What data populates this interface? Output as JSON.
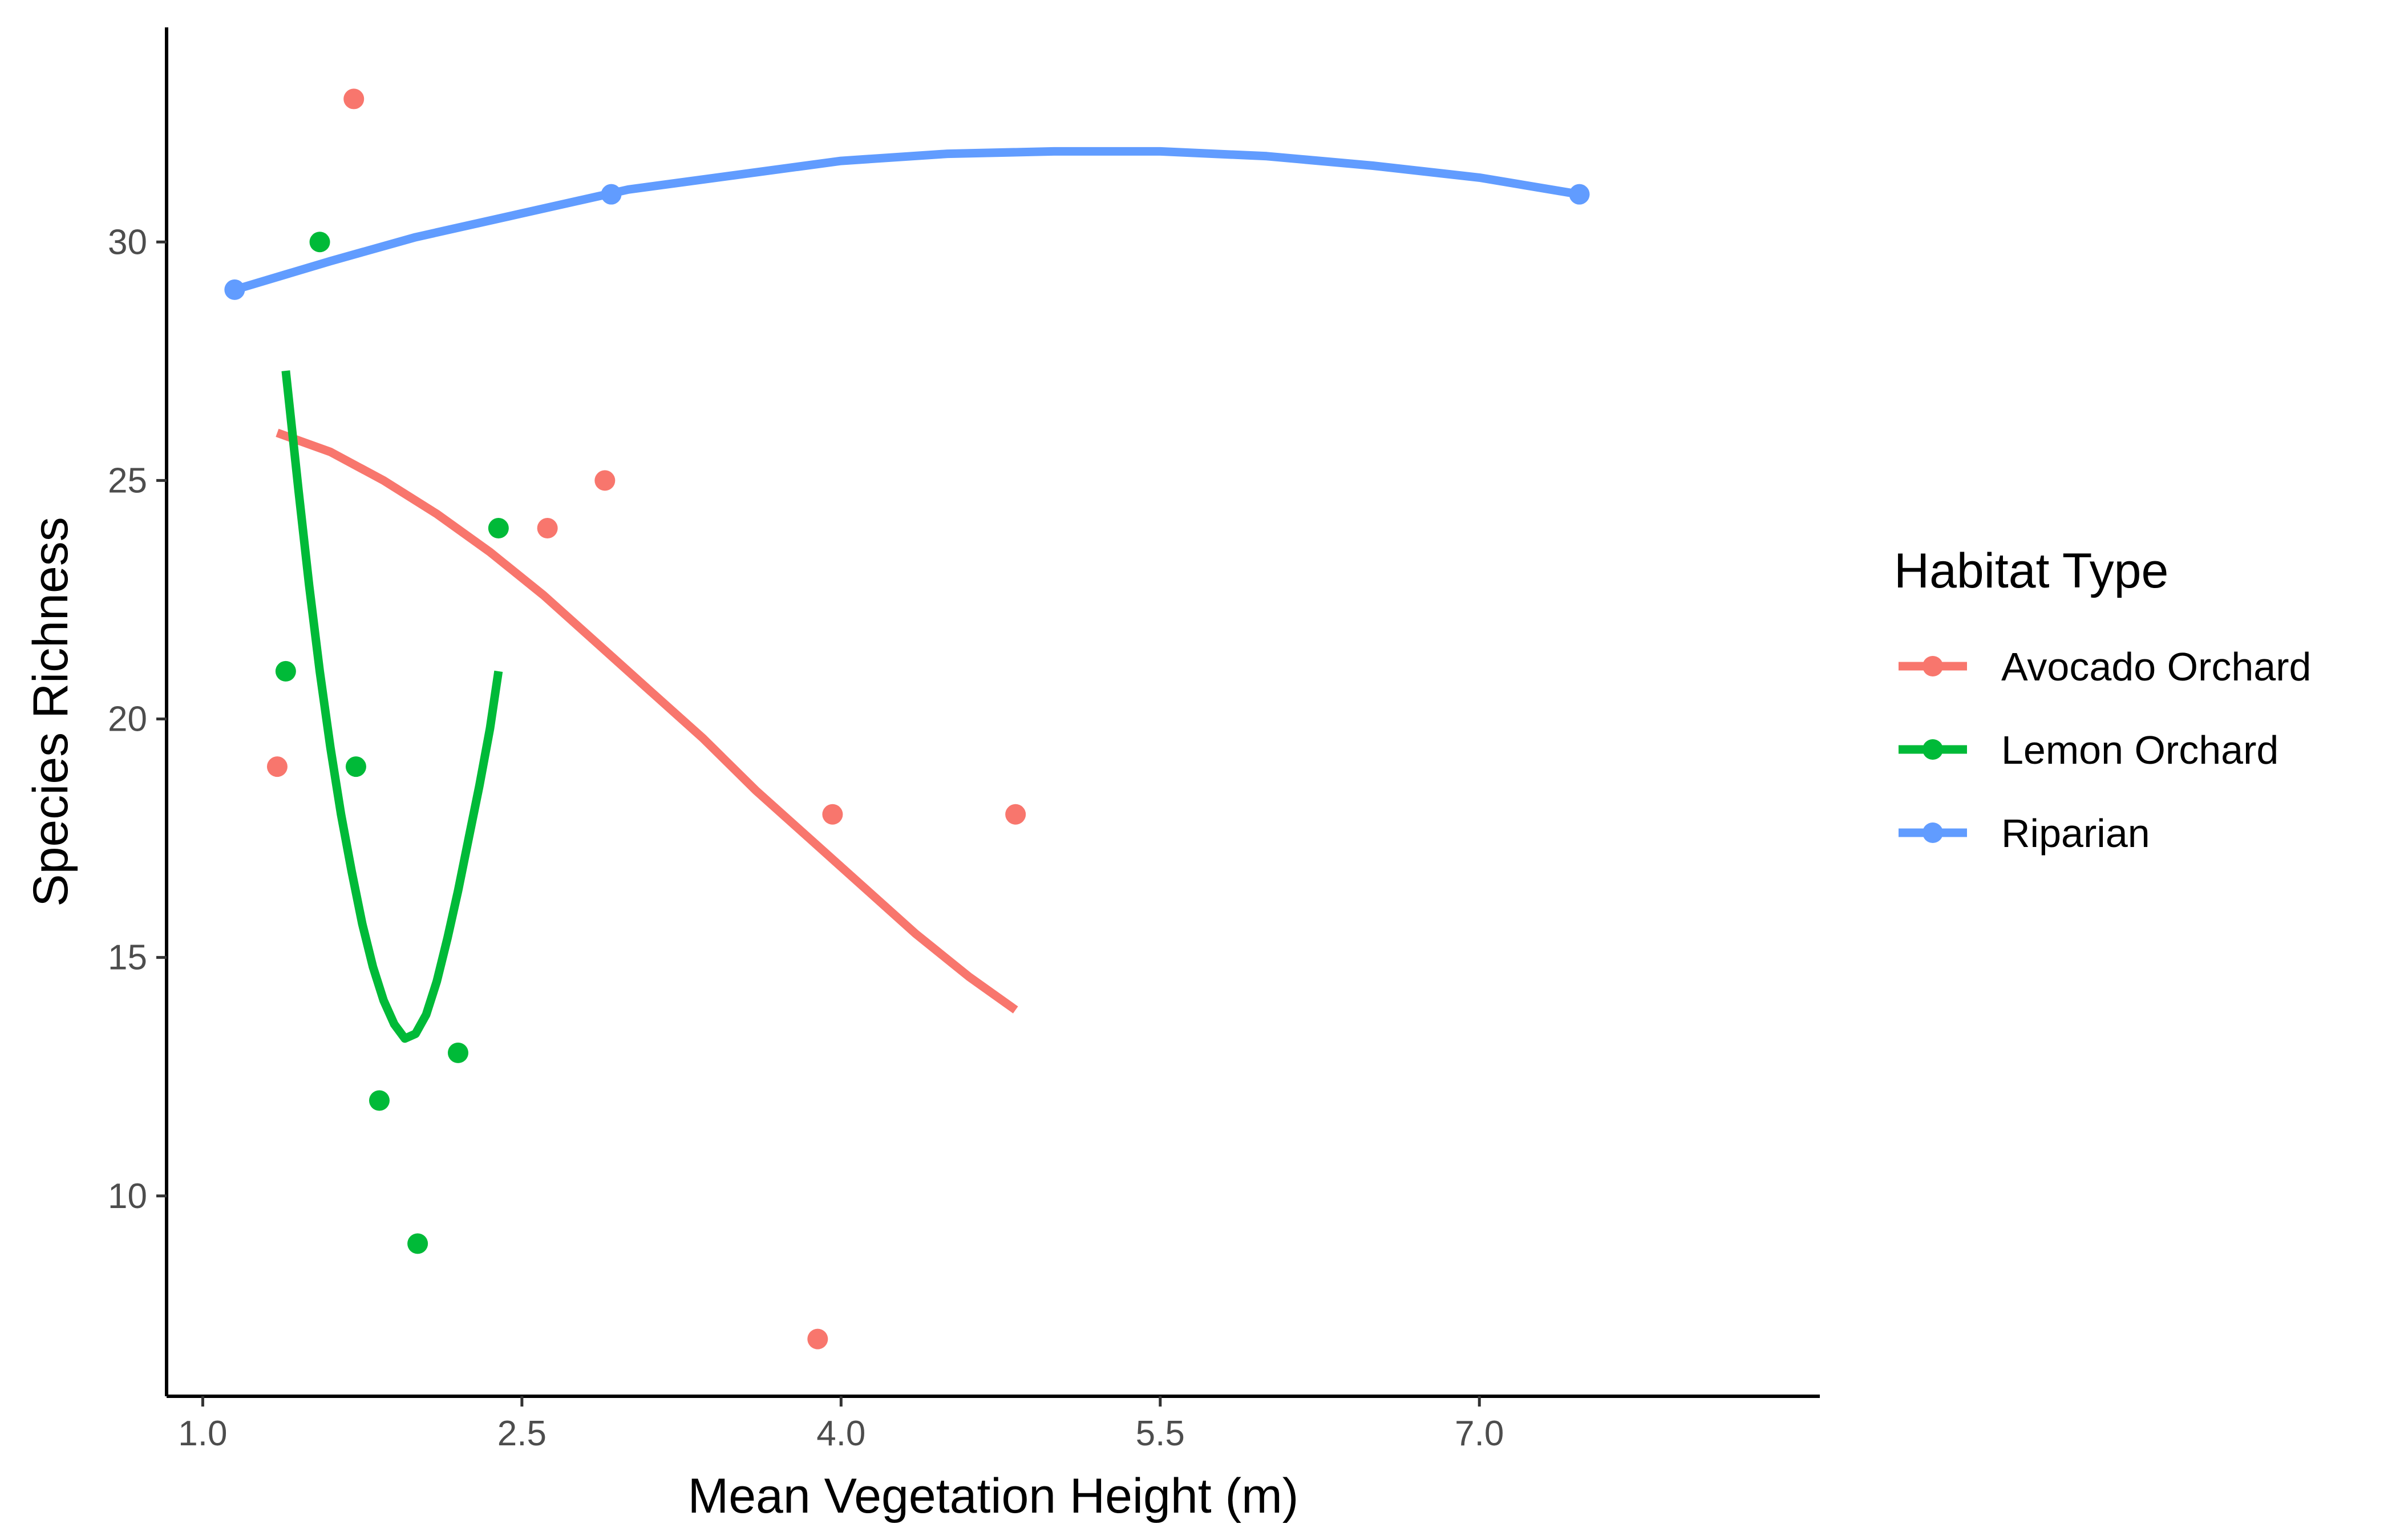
{
  "chart_data": {
    "type": "scatter",
    "title": "",
    "xlabel": "Mean Vegetation Height (m)",
    "ylabel": "Species Richness",
    "xlim": [
      0.83,
      8.6
    ],
    "ylim": [
      5.8,
      34.5
    ],
    "x_ticks": [
      1.0,
      2.5,
      4.0,
      5.5,
      7.0
    ],
    "x_tick_labels": [
      "1.0",
      "2.5",
      "4.0",
      "5.5",
      "7.0"
    ],
    "y_ticks": [
      10,
      15,
      20,
      25,
      30
    ],
    "y_tick_labels": [
      "10",
      "15",
      "20",
      "25",
      "30"
    ],
    "grid": false,
    "legend": {
      "title": "Habitat Type",
      "position": "right"
    },
    "series": [
      {
        "name": "Avocado Orchard",
        "color": "#F8766D",
        "points": [
          {
            "x": 1.35,
            "y": 19
          },
          {
            "x": 1.71,
            "y": 33
          },
          {
            "x": 2.62,
            "y": 24
          },
          {
            "x": 2.89,
            "y": 25
          },
          {
            "x": 3.89,
            "y": 7
          },
          {
            "x": 3.96,
            "y": 18
          },
          {
            "x": 4.82,
            "y": 18
          }
        ],
        "fit": {
          "x": [
            1.35,
            1.6,
            1.85,
            2.1,
            2.35,
            2.6,
            2.85,
            3.1,
            3.35,
            3.6,
            3.85,
            4.1,
            4.35,
            4.6,
            4.82
          ],
          "y": [
            26.0,
            25.6,
            25.0,
            24.3,
            23.5,
            22.6,
            21.6,
            20.6,
            19.6,
            18.5,
            17.5,
            16.5,
            15.5,
            14.6,
            13.9
          ]
        }
      },
      {
        "name": "Lemon Orchard",
        "color": "#00BA38",
        "points": [
          {
            "x": 1.39,
            "y": 21
          },
          {
            "x": 1.55,
            "y": 30
          },
          {
            "x": 1.72,
            "y": 19
          },
          {
            "x": 1.83,
            "y": 12
          },
          {
            "x": 2.01,
            "y": 9
          },
          {
            "x": 2.2,
            "y": 13
          },
          {
            "x": 2.39,
            "y": 24
          }
        ],
        "fit": {
          "x": [
            1.39,
            1.45,
            1.5,
            1.55,
            1.6,
            1.65,
            1.7,
            1.75,
            1.8,
            1.85,
            1.9,
            1.95,
            2.0,
            2.05,
            2.1,
            2.15,
            2.2,
            2.25,
            2.3,
            2.35,
            2.39
          ],
          "y": [
            27.3,
            24.8,
            22.8,
            21.0,
            19.4,
            18.0,
            16.8,
            15.7,
            14.8,
            14.1,
            13.6,
            13.3,
            13.4,
            13.8,
            14.5,
            15.4,
            16.4,
            17.5,
            18.6,
            19.8,
            21.0
          ]
        }
      },
      {
        "name": "Riparian",
        "color": "#619CFF",
        "points": [
          {
            "x": 1.15,
            "y": 29
          },
          {
            "x": 2.92,
            "y": 31
          },
          {
            "x": 7.47,
            "y": 31
          }
        ],
        "fit": {
          "x": [
            1.15,
            1.6,
            2.0,
            2.5,
            3.0,
            3.5,
            4.0,
            4.5,
            5.0,
            5.5,
            6.0,
            6.5,
            7.0,
            7.47
          ],
          "y": [
            29.0,
            29.6,
            30.1,
            30.6,
            31.1,
            31.4,
            31.7,
            31.85,
            31.9,
            31.9,
            31.8,
            31.6,
            31.35,
            31.0
          ]
        }
      }
    ]
  }
}
